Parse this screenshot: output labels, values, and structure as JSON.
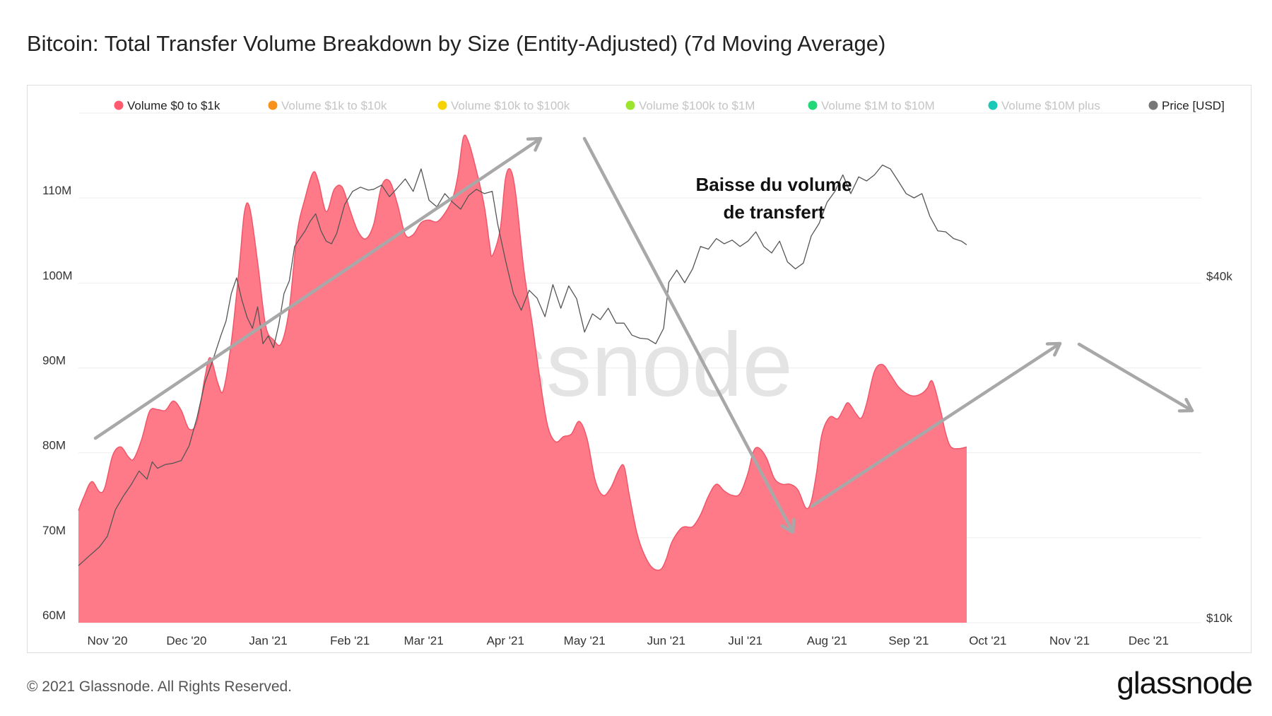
{
  "title": "Bitcoin: Total Transfer Volume Breakdown by Size (Entity-Adjusted) (7d Moving Average)",
  "footer": {
    "copyright": "© 2021 Glassnode. All Rights Reserved.",
    "logo": "glassnode",
    "watermark": "glassnode"
  },
  "annotation": {
    "line1": "Baisse du volume",
    "line2": "de transfert"
  },
  "colors": {
    "area_fill": "#ff7a88",
    "area_stroke": "#f0566a",
    "price_line": "#555555",
    "arrow": "#a8a8a8",
    "grid": "#eeeeee"
  },
  "legend": [
    {
      "label": "Volume $0 to $1k",
      "color": "#ff5a6e",
      "active": true
    },
    {
      "label": "Volume $1k to $10k",
      "color": "#f7931a",
      "active": false
    },
    {
      "label": "Volume $10k to $100k",
      "color": "#f5d300",
      "active": false
    },
    {
      "label": "Volume $100k to $1M",
      "color": "#9be62c",
      "active": false
    },
    {
      "label": "Volume $1M to $10M",
      "color": "#22d67a",
      "active": false
    },
    {
      "label": "Volume $10M plus",
      "color": "#1cc9b8",
      "active": false
    },
    {
      "label": "Price [USD]",
      "color": "#777777",
      "active": true
    }
  ],
  "chart_data": {
    "type": "area",
    "title": "Bitcoin: Total Transfer Volume Breakdown by Size (Entity-Adjusted) (7d Moving Average)",
    "x_range_days": [
      0,
      426
    ],
    "x_start_label": "2020-10-21",
    "x_ticks": [
      {
        "label": "Nov '20",
        "day": 11
      },
      {
        "label": "Dec '20",
        "day": 41
      },
      {
        "label": "Jan '21",
        "day": 72
      },
      {
        "label": "Feb '21",
        "day": 103
      },
      {
        "label": "Mar '21",
        "day": 131
      },
      {
        "label": "Apr '21",
        "day": 162
      },
      {
        "label": "May '21",
        "day": 192
      },
      {
        "label": "Jun '21",
        "day": 223
      },
      {
        "label": "Jul '21",
        "day": 253
      },
      {
        "label": "Aug '21",
        "day": 284
      },
      {
        "label": "Sep '21",
        "day": 315
      },
      {
        "label": "Oct '21",
        "day": 345
      },
      {
        "label": "Nov '21",
        "day": 376
      },
      {
        "label": "Dec '21",
        "day": 406
      }
    ],
    "y_left": {
      "min": 60,
      "max": 120,
      "ticks": [
        60,
        70,
        80,
        90,
        100,
        110
      ],
      "tick_labels": [
        "60M",
        "70M",
        "80M",
        "90M",
        "100M",
        "110M"
      ]
    },
    "y_right": {
      "scale": "log",
      "min": 10000,
      "max": 79000,
      "ticks": [
        10000,
        40000
      ],
      "tick_labels": [
        "$10k",
        "$40k"
      ]
    },
    "series": [
      {
        "name": "Volume $0 to $1k",
        "type": "area",
        "points": [
          [
            0,
            73.2
          ],
          [
            2,
            74.8
          ],
          [
            5,
            76.6
          ],
          [
            8,
            75.4
          ],
          [
            10,
            75.9
          ],
          [
            13,
            79.7
          ],
          [
            16,
            80.7
          ],
          [
            19,
            79.5
          ],
          [
            21,
            79.3
          ],
          [
            24,
            81.6
          ],
          [
            27,
            84.9
          ],
          [
            30,
            85.1
          ],
          [
            33,
            85.0
          ],
          [
            36,
            86.1
          ],
          [
            39,
            85.0
          ],
          [
            42,
            82.8
          ],
          [
            45,
            83.7
          ],
          [
            48,
            88.9
          ],
          [
            50,
            91.2
          ],
          [
            53,
            88.1
          ],
          [
            55,
            87.4
          ],
          [
            58,
            93.0
          ],
          [
            61,
            101.8
          ],
          [
            63,
            108.4
          ],
          [
            65,
            108.8
          ],
          [
            68,
            102.4
          ],
          [
            71,
            95.0
          ],
          [
            74,
            93.3
          ],
          [
            77,
            92.9
          ],
          [
            80,
            97.0
          ],
          [
            83,
            105.9
          ],
          [
            86,
            110.0
          ],
          [
            89,
            113.0
          ],
          [
            91,
            112.0
          ],
          [
            94,
            108.4
          ],
          [
            97,
            111.0
          ],
          [
            100,
            111.3
          ],
          [
            103,
            108.6
          ],
          [
            106,
            106.1
          ],
          [
            109,
            105.2
          ],
          [
            112,
            106.9
          ],
          [
            115,
            111.4
          ],
          [
            118,
            112.0
          ],
          [
            121,
            109.3
          ],
          [
            124,
            105.7
          ],
          [
            127,
            105.7
          ],
          [
            130,
            107.1
          ],
          [
            133,
            107.4
          ],
          [
            136,
            107.2
          ],
          [
            139,
            108.2
          ],
          [
            142,
            110.0
          ],
          [
            144,
            112.7
          ],
          [
            146,
            117.1
          ],
          [
            148,
            116.6
          ],
          [
            151,
            113.2
          ],
          [
            154,
            109.0
          ],
          [
            156,
            104.5
          ],
          [
            157,
            103.2
          ],
          [
            160,
            106.3
          ],
          [
            162,
            112.3
          ],
          [
            164,
            113.3
          ],
          [
            166,
            110.2
          ],
          [
            169,
            101.5
          ],
          [
            172,
            95.5
          ],
          [
            175,
            88.8
          ],
          [
            178,
            83.2
          ],
          [
            181,
            81.3
          ],
          [
            184,
            81.9
          ],
          [
            187,
            82.2
          ],
          [
            190,
            83.7
          ],
          [
            193,
            81.6
          ],
          [
            196,
            76.8
          ],
          [
            199,
            75.0
          ],
          [
            202,
            75.9
          ],
          [
            205,
            78.0
          ],
          [
            207,
            78.4
          ],
          [
            209,
            75.0
          ],
          [
            212,
            70.4
          ],
          [
            215,
            67.8
          ],
          [
            218,
            66.4
          ],
          [
            221,
            66.3
          ],
          [
            223,
            67.5
          ],
          [
            225,
            69.4
          ],
          [
            228,
            70.9
          ],
          [
            230,
            71.3
          ],
          [
            233,
            71.3
          ],
          [
            236,
            72.7
          ],
          [
            239,
            74.9
          ],
          [
            242,
            76.3
          ],
          [
            245,
            75.5
          ],
          [
            248,
            75.0
          ],
          [
            251,
            75.2
          ],
          [
            254,
            77.6
          ],
          [
            256,
            80.1
          ],
          [
            258,
            80.6
          ],
          [
            261,
            79.4
          ],
          [
            264,
            77.0
          ],
          [
            267,
            76.3
          ],
          [
            270,
            76.3
          ],
          [
            273,
            75.6
          ],
          [
            276,
            73.5
          ],
          [
            278,
            74.3
          ],
          [
            280,
            77.6
          ],
          [
            282,
            82.1
          ],
          [
            285,
            84.2
          ],
          [
            288,
            84.0
          ],
          [
            290,
            85.0
          ],
          [
            292,
            85.9
          ],
          [
            295,
            84.6
          ],
          [
            297,
            84.1
          ],
          [
            299,
            85.8
          ],
          [
            302,
            89.6
          ],
          [
            305,
            90.4
          ],
          [
            308,
            89.2
          ],
          [
            311,
            87.8
          ],
          [
            314,
            87.0
          ],
          [
            317,
            86.7
          ],
          [
            320,
            87.0
          ],
          [
            322,
            87.6
          ],
          [
            324,
            88.4
          ],
          [
            327,
            85.1
          ],
          [
            329,
            82.3
          ],
          [
            331,
            80.7
          ],
          [
            334,
            80.5
          ],
          [
            337,
            80.7
          ]
        ]
      },
      {
        "name": "Price [USD]",
        "type": "line",
        "axis": "right",
        "points": [
          [
            0,
            12600
          ],
          [
            4,
            13100
          ],
          [
            8,
            13600
          ],
          [
            11,
            14200
          ],
          [
            14,
            15800
          ],
          [
            17,
            16700
          ],
          [
            20,
            17500
          ],
          [
            23,
            18500
          ],
          [
            26,
            17900
          ],
          [
            28,
            19200
          ],
          [
            30,
            18700
          ],
          [
            33,
            19000
          ],
          [
            36,
            19100
          ],
          [
            39,
            19300
          ],
          [
            42,
            20500
          ],
          [
            45,
            23000
          ],
          [
            48,
            26500
          ],
          [
            51,
            29000
          ],
          [
            54,
            32000
          ],
          [
            56,
            34000
          ],
          [
            58,
            38000
          ],
          [
            60,
            40500
          ],
          [
            62,
            37000
          ],
          [
            64,
            34500
          ],
          [
            66,
            33000
          ],
          [
            68,
            36000
          ],
          [
            70,
            31000
          ],
          [
            72,
            32000
          ],
          [
            74,
            30500
          ],
          [
            76,
            33500
          ],
          [
            78,
            38000
          ],
          [
            80,
            40000
          ],
          [
            82,
            46000
          ],
          [
            84,
            47500
          ],
          [
            86,
            49000
          ],
          [
            88,
            51000
          ],
          [
            90,
            52500
          ],
          [
            92,
            49000
          ],
          [
            94,
            47000
          ],
          [
            96,
            46500
          ],
          [
            98,
            48500
          ],
          [
            101,
            54500
          ],
          [
            104,
            57500
          ],
          [
            107,
            58500
          ],
          [
            110,
            57800
          ],
          [
            112,
            58000
          ],
          [
            115,
            59000
          ],
          [
            118,
            56300
          ],
          [
            121,
            58300
          ],
          [
            124,
            60500
          ],
          [
            127,
            57500
          ],
          [
            130,
            63000
          ],
          [
            133,
            55500
          ],
          [
            136,
            54000
          ],
          [
            139,
            57000
          ],
          [
            142,
            55000
          ],
          [
            145,
            53500
          ],
          [
            148,
            56500
          ],
          [
            151,
            58000
          ],
          [
            154,
            57000
          ],
          [
            157,
            57500
          ],
          [
            159,
            50500
          ],
          [
            162,
            43500
          ],
          [
            165,
            38000
          ],
          [
            168,
            35500
          ],
          [
            171,
            38500
          ],
          [
            174,
            37300
          ],
          [
            177,
            34600
          ],
          [
            180,
            39400
          ],
          [
            183,
            35800
          ],
          [
            186,
            39200
          ],
          [
            189,
            37200
          ],
          [
            192,
            32500
          ],
          [
            195,
            35000
          ],
          [
            198,
            34200
          ],
          [
            201,
            35800
          ],
          [
            204,
            33700
          ],
          [
            207,
            33700
          ],
          [
            210,
            32100
          ],
          [
            213,
            31700
          ],
          [
            216,
            31600
          ],
          [
            219,
            31000
          ],
          [
            222,
            33000
          ],
          [
            224,
            39800
          ],
          [
            227,
            41800
          ],
          [
            230,
            39700
          ],
          [
            233,
            42000
          ],
          [
            236,
            46000
          ],
          [
            239,
            45500
          ],
          [
            242,
            47500
          ],
          [
            245,
            46500
          ],
          [
            248,
            47200
          ],
          [
            251,
            46000
          ],
          [
            254,
            47000
          ],
          [
            257,
            48800
          ],
          [
            260,
            46000
          ],
          [
            263,
            44800
          ],
          [
            266,
            47000
          ],
          [
            269,
            43200
          ],
          [
            272,
            42000
          ],
          [
            275,
            43000
          ],
          [
            278,
            48000
          ],
          [
            281,
            50500
          ],
          [
            284,
            55000
          ],
          [
            287,
            57500
          ],
          [
            290,
            61500
          ],
          [
            293,
            57000
          ],
          [
            296,
            61000
          ],
          [
            299,
            60000
          ],
          [
            302,
            61500
          ],
          [
            305,
            64000
          ],
          [
            308,
            63000
          ],
          [
            311,
            60000
          ],
          [
            314,
            57000
          ],
          [
            317,
            56000
          ],
          [
            320,
            57000
          ],
          [
            323,
            52000
          ],
          [
            326,
            49000
          ],
          [
            329,
            48800
          ],
          [
            332,
            47500
          ],
          [
            335,
            47000
          ],
          [
            337,
            46300
          ]
        ]
      }
    ]
  }
}
